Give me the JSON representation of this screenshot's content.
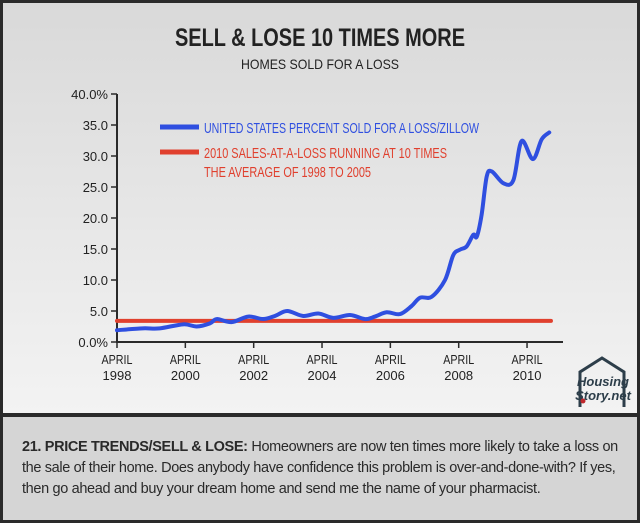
{
  "chart_data": {
    "type": "line",
    "title": "SELL & LOSE 10 TIMES MORE",
    "subtitle": "HOMES SOLD FOR A LOSS",
    "xlabel": "",
    "ylabel": "",
    "ylim": [
      0,
      40
    ],
    "xlim": [
      1998.25,
      2010.95
    ],
    "y_ticks": [
      "0.0%",
      "5.0",
      "10.0",
      "15.0",
      "20.0",
      "25.0",
      "30.0",
      "35.0",
      "40.0%"
    ],
    "x_ticks": [
      {
        "month": "APRIL",
        "year": "1998"
      },
      {
        "month": "APRIL",
        "year": "2000"
      },
      {
        "month": "APRIL",
        "year": "2002"
      },
      {
        "month": "APRIL",
        "year": "2004"
      },
      {
        "month": "APRIL",
        "year": "2006"
      },
      {
        "month": "APRIL",
        "year": "2008"
      },
      {
        "month": "APRIL",
        "year": "2010"
      }
    ],
    "grid": false,
    "legend_position": "top-left",
    "series": [
      {
        "name": "UNITED STATES PERCENT SOLD FOR A LOSS/ZILLOW",
        "color": "#2f4fe0",
        "x": [
          1998.25,
          1999.0,
          1999.5,
          2000.19,
          2000.58,
          2000.97,
          2001.17,
          2001.6,
          2002.09,
          2002.53,
          2002.87,
          2003.23,
          2003.7,
          2004.14,
          2004.58,
          2005.07,
          2005.51,
          2005.8,
          2006.14,
          2006.53,
          2006.87,
          2007.12,
          2007.46,
          2007.85,
          2008.09,
          2008.29,
          2008.48,
          2008.68,
          2008.78,
          2008.92,
          2009.07,
          2009.22,
          2009.56,
          2009.85,
          2010.09,
          2010.42,
          2010.68,
          2010.9
        ],
        "y": [
          1.9,
          2.2,
          2.2,
          2.85,
          2.5,
          3.0,
          3.7,
          3.2,
          4.1,
          3.7,
          4.2,
          5.0,
          4.2,
          4.6,
          3.9,
          4.35,
          3.7,
          4.1,
          4.8,
          4.5,
          5.8,
          7.15,
          7.3,
          10.0,
          14.0,
          14.9,
          15.4,
          17.3,
          17.0,
          20.5,
          26.7,
          27.5,
          25.6,
          26.1,
          32.4,
          29.5,
          32.7,
          33.8
        ]
      },
      {
        "name": "2010 SALES-AT-A-LOSS RUNNING AT 10 TIMES THE AVERAGE OF 1998 TO 2005",
        "name_lines": [
          "2010 SALES-AT-A-LOSS RUNNING AT 10 TIMES",
          "THE AVERAGE OF 1998 TO 2005"
        ],
        "color": "#e0402e",
        "x": [
          1998.25,
          2010.95
        ],
        "y": [
          3.4,
          3.4
        ]
      }
    ]
  },
  "logo": {
    "text": "HousingStory.net",
    "line1": "Housing",
    "line2": "Story.net"
  },
  "caption": {
    "label": "21. PRICE TRENDS/SELL & LOSE:",
    "text": " Homeowners are now ten times more likely to take a loss on the sale of their home. Does anybody have confidence this problem is over-and-done-with? If yes, then go ahead and buy your dream home and send me the name of your pharmacist."
  },
  "colors": {
    "axis": "#2a2a2a",
    "border": "#2a2a2a",
    "caption_bg": "#d5d5d5"
  }
}
